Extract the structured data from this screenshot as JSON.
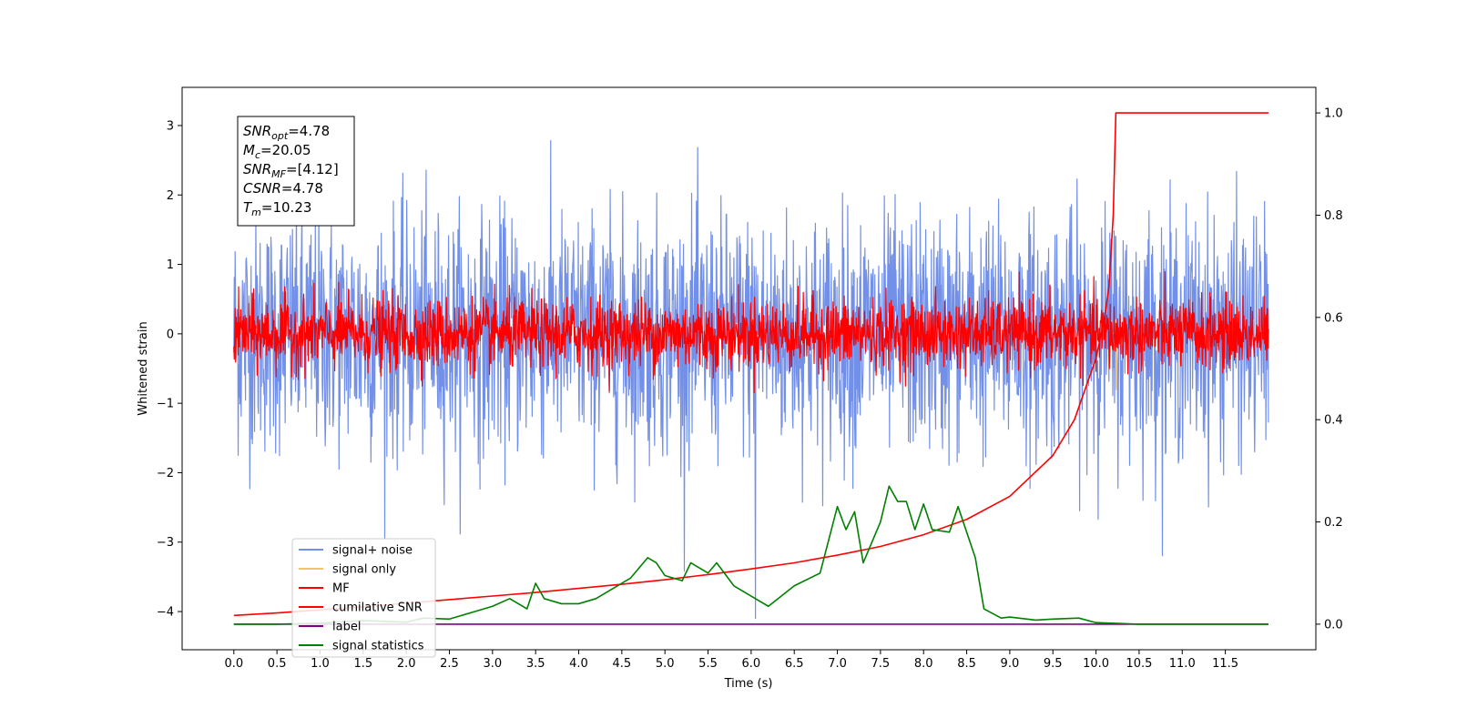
{
  "chart_data": {
    "type": "line",
    "title": "",
    "xlabel": "Time (s)",
    "ylabel": "Whitened strain",
    "ylabel_right": "",
    "xlim": [
      -0.6,
      12.55
    ],
    "ylim": [
      -4.55,
      3.55
    ],
    "ylim_right": [
      -0.05,
      1.05
    ],
    "grid": false,
    "legend_position": "bottom-left",
    "x_ticks": [
      "0.0",
      "0.5",
      "1.0",
      "1.5",
      "2.0",
      "2.5",
      "3.0",
      "3.5",
      "4.0",
      "4.5",
      "5.0",
      "5.5",
      "6.0",
      "6.5",
      "7.0",
      "7.5",
      "8.0",
      "8.5",
      "9.0",
      "9.5",
      "10.0",
      "10.5",
      "11.0",
      "11.5"
    ],
    "y_ticks_left": [
      "3",
      "2",
      "1",
      "0",
      "−1",
      "−2",
      "−3",
      "−4"
    ],
    "y_ticks_right": [
      "1.0",
      "0.8",
      "0.6",
      "0.4",
      "0.2",
      "0.0"
    ],
    "stats_box": [
      {
        "sym": "SNR",
        "sub": "opt",
        "rest": "=4.78"
      },
      {
        "sym": "M",
        "sub": "c",
        "rest": "=20.05"
      },
      {
        "sym": "SNR",
        "sub": "MF",
        "rest": "=[4.12]"
      },
      {
        "sym": "CSNR",
        "sub": "",
        "rest": "=4.78"
      },
      {
        "sym": "T",
        "sub": "m",
        "rest": "=10.23"
      }
    ],
    "series": [
      {
        "name": "signal+ noise",
        "color": "#7390e8",
        "axis": "left",
        "kind": "noise",
        "x_range": [
          0,
          12
        ],
        "mean": 0,
        "std": 0.85,
        "spike": {
          "x": 6.05,
          "y": -4.1
        }
      },
      {
        "name": "signal only",
        "color": "#f5c36e",
        "axis": "left",
        "kind": "chirp",
        "merger_x": 10.23,
        "peak": [
          0.2,
          -0.8
        ]
      },
      {
        "name": "MF",
        "color": "#ff0000",
        "axis": "left",
        "kind": "noise",
        "x_range": [
          0,
          12
        ],
        "mean": 0,
        "std": 0.25
      },
      {
        "name": "cumilative SNR",
        "color": "#ff0000",
        "axis": "right",
        "x": [
          0,
          0.5,
          1,
          1.5,
          2,
          2.5,
          3,
          3.5,
          4,
          4.5,
          5,
          5.5,
          6,
          6.5,
          7,
          7.5,
          8,
          8.5,
          9,
          9.5,
          9.75,
          10,
          10.1,
          10.15,
          10.2,
          10.23,
          10.5,
          11,
          11.5,
          12
        ],
        "y": [
          0.017,
          0.022,
          0.028,
          0.034,
          0.041,
          0.048,
          0.055,
          0.062,
          0.07,
          0.078,
          0.087,
          0.097,
          0.108,
          0.12,
          0.135,
          0.152,
          0.175,
          0.205,
          0.25,
          0.33,
          0.4,
          0.52,
          0.6,
          0.66,
          0.8,
          1.0,
          1.0,
          1.0,
          1.0,
          1.0
        ]
      },
      {
        "name": "label",
        "color": "#800080",
        "axis": "right",
        "x": [
          0,
          12
        ],
        "y": [
          0,
          0
        ]
      },
      {
        "name": "signal statistics",
        "color": "#008000",
        "axis": "right",
        "x": [
          0,
          0.5,
          1,
          1.5,
          2,
          2.2,
          2.5,
          2.8,
          3,
          3.2,
          3.4,
          3.5,
          3.6,
          3.8,
          4,
          4.2,
          4.4,
          4.6,
          4.8,
          4.9,
          5,
          5.2,
          5.3,
          5.5,
          5.6,
          5.8,
          6,
          6.2,
          6.5,
          6.8,
          7,
          7.1,
          7.2,
          7.3,
          7.5,
          7.6,
          7.7,
          7.8,
          7.9,
          8,
          8.1,
          8.3,
          8.4,
          8.6,
          8.7,
          8.9,
          9,
          9.3,
          9.5,
          9.8,
          10,
          10.5,
          11,
          12
        ],
        "y": [
          0,
          0,
          0.002,
          0.007,
          0.004,
          0.012,
          0.01,
          0.025,
          0.035,
          0.05,
          0.03,
          0.08,
          0.05,
          0.04,
          0.04,
          0.05,
          0.07,
          0.09,
          0.13,
          0.12,
          0.095,
          0.085,
          0.12,
          0.1,
          0.12,
          0.075,
          0.055,
          0.035,
          0.075,
          0.1,
          0.23,
          0.185,
          0.22,
          0.12,
          0.2,
          0.27,
          0.24,
          0.24,
          0.185,
          0.235,
          0.185,
          0.18,
          0.23,
          0.13,
          0.03,
          0.012,
          0.014,
          0.008,
          0.01,
          0.012,
          0.003,
          0,
          0,
          0
        ]
      }
    ]
  }
}
